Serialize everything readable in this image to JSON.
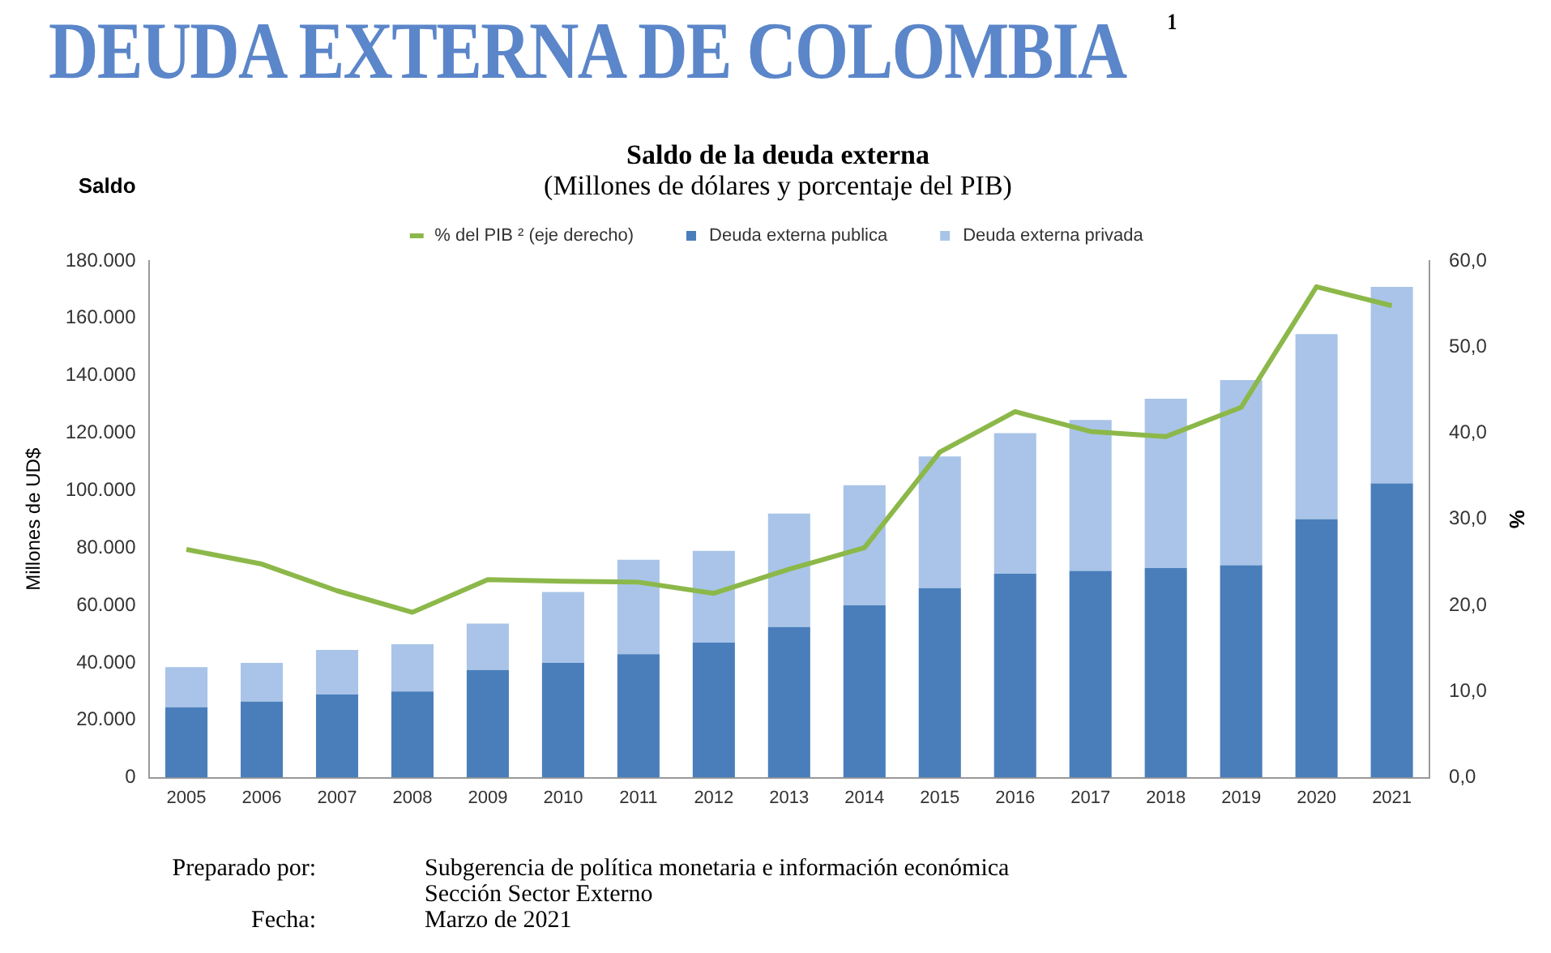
{
  "chart_data": {
    "type": "bar",
    "stacked": true,
    "title": "DEUDA EXTERNA DE COLOMBIA$^{1}$",
    "subtitle": "Saldo de la deuda externa\n(Millones de dólares y porcentaje del PIB)",
    "ylabel": "Millones de UD$",
    "y2label": "%",
    "categories": [
      "2005",
      "2006",
      "2007",
      "2008",
      "2009",
      "2010",
      "2011",
      "2012",
      "2013",
      "2014",
      "2015",
      "2016",
      "2017",
      "2018",
      "2019",
      "2020",
      "2021"
    ],
    "series": [
      {
        "name": "Deuda externa publica",
        "color": "#4a7ebb",
        "values": [
          24500,
          26500,
          29000,
          30000,
          37500,
          40000,
          43000,
          47000,
          52500,
          60000,
          66000,
          71000,
          72000,
          73000,
          74000,
          90000,
          102500
        ]
      },
      {
        "name": "Deuda externa privada",
        "color": "#a9c4e8",
        "values": [
          14000,
          13500,
          15500,
          16500,
          16200,
          24700,
          32900,
          32000,
          39500,
          41900,
          45900,
          49000,
          52600,
          59000,
          64500,
          64500,
          68500
        ]
      },
      {
        "name": "% del PIB ² (eje derecho)",
        "type": "line",
        "axis": "y2",
        "color": "#8cb84a",
        "marker": "none",
        "values": [
          26.5,
          24.8,
          21.7,
          19.2,
          23.0,
          22.8,
          22.7,
          21.4,
          24.2,
          26.7,
          37.8,
          42.5,
          40.2,
          39.6,
          43.0,
          57.0,
          54.8
        ]
      }
    ],
    "ylim": [
      0,
      180000
    ],
    "yticks": [
      {
        "value": 0,
        "label": "0"
      },
      {
        "value": 20000,
        "label": "20.000"
      },
      {
        "value": 40000,
        "label": "40.000"
      },
      {
        "value": 60000,
        "label": "60.000"
      },
      {
        "value": 80000,
        "label": "80.000"
      },
      {
        "value": 100000,
        "label": "100.000"
      },
      {
        "value": 120000,
        "label": "120.000"
      },
      {
        "value": 140000,
        "label": "140.000"
      },
      {
        "value": 160000,
        "label": "160.000"
      },
      {
        "value": 180000,
        "label": "180.000"
      }
    ],
    "y2lim": [
      0,
      60
    ],
    "y2ticks": [
      {
        "value": 0,
        "label": "0,0"
      },
      {
        "value": 10,
        "label": "10,0"
      },
      {
        "value": 20,
        "label": "20,0"
      },
      {
        "value": 30,
        "label": "30,0"
      },
      {
        "value": 40,
        "label": "40,0"
      },
      {
        "value": 50,
        "label": "50,0"
      },
      {
        "value": 60,
        "label": "60,0"
      }
    ],
    "grid": false,
    "legend": "top",
    "annotations": [
      "Saldo",
      "Preparado por:",
      "Subgerencia de política monetaria e información económica\nSección Sector Externo",
      "Fecha:",
      "Marzo de 2021"
    ]
  }
}
